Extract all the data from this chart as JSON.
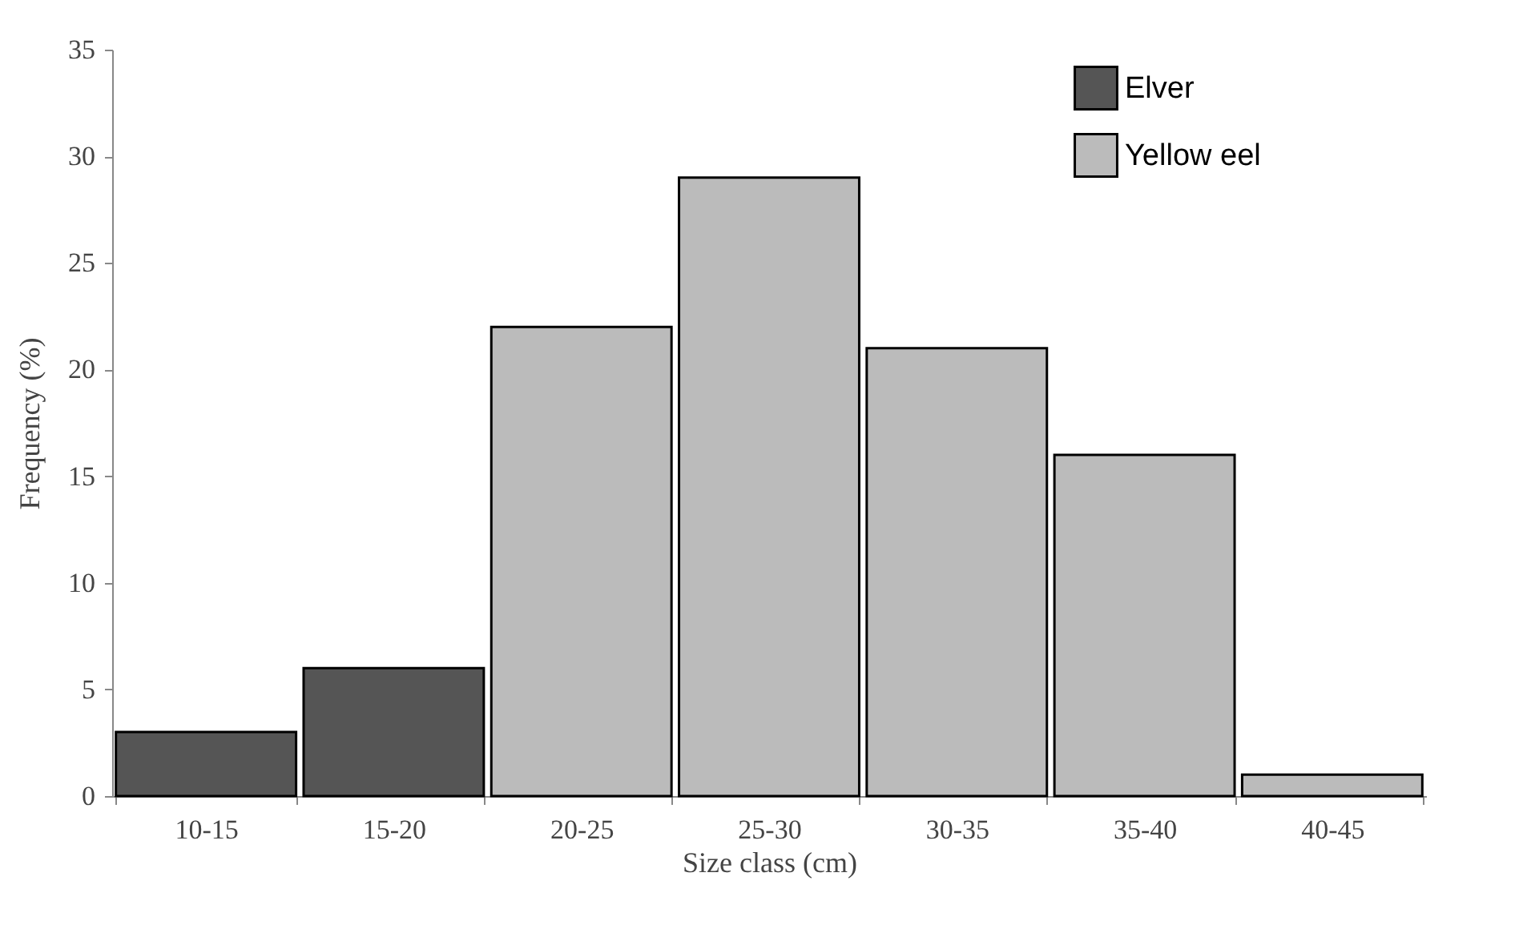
{
  "chart_data": {
    "type": "bar",
    "xlabel": "Size class (cm)",
    "ylabel": "Frequency (%)",
    "categories": [
      "10-15",
      "15-20",
      "20-25",
      "25-30",
      "30-35",
      "35-40",
      "40-45"
    ],
    "series": [
      {
        "name": "Elver",
        "color": "#555555",
        "values": [
          3,
          6,
          null,
          null,
          null,
          null,
          null
        ]
      },
      {
        "name": "Yellow eel",
        "color": "#bbbbbb",
        "values": [
          null,
          null,
          22,
          29,
          21,
          16,
          1
        ]
      }
    ],
    "ylim": [
      0,
      35
    ],
    "yticks": [
      0,
      5,
      10,
      15,
      20,
      25,
      30,
      35
    ],
    "grid": false,
    "legend": "top right"
  }
}
